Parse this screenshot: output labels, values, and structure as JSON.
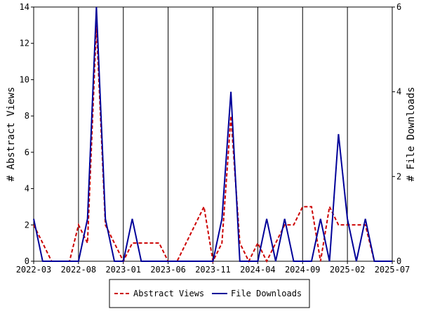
{
  "chart_data": {
    "type": "line",
    "x_tick_labels": [
      "2022-03",
      "2022-08",
      "2023-01",
      "2023-06",
      "2023-11",
      "2024-04",
      "2024-09",
      "2025-02",
      "2025-07"
    ],
    "x": [
      "2022-03",
      "2022-04",
      "2022-05",
      "2022-06",
      "2022-07",
      "2022-08",
      "2022-09",
      "2022-10",
      "2022-11",
      "2022-12",
      "2023-01",
      "2023-02",
      "2023-03",
      "2023-04",
      "2023-05",
      "2023-06",
      "2023-07",
      "2023-08",
      "2023-09",
      "2023-10",
      "2023-11",
      "2023-12",
      "2024-01",
      "2024-02",
      "2024-03",
      "2024-04",
      "2024-05",
      "2024-06",
      "2024-07",
      "2024-08",
      "2024-09",
      "2024-10",
      "2024-11",
      "2024-12",
      "2025-01",
      "2025-02",
      "2025-03",
      "2025-04",
      "2025-05",
      "2025-06",
      "2025-07"
    ],
    "series": [
      {
        "name": "Abstract Views",
        "axis": "left",
        "color": "#cc0000",
        "style": "dashed",
        "values": [
          2,
          1,
          0,
          0,
          0,
          2,
          1,
          13,
          2,
          1,
          0,
          1,
          1,
          1,
          1,
          0,
          0,
          1,
          2,
          3,
          0,
          1,
          8,
          1,
          0,
          1,
          0,
          1,
          2,
          2,
          3,
          3,
          0,
          3,
          2,
          2,
          2,
          2,
          0,
          0,
          0
        ]
      },
      {
        "name": "File Downloads",
        "axis": "right",
        "color": "#000099",
        "style": "solid",
        "values": [
          1,
          0,
          0,
          0,
          0,
          0,
          1,
          6,
          1,
          0,
          0,
          1,
          0,
          0,
          0,
          0,
          0,
          0,
          0,
          0,
          0,
          1,
          4,
          0,
          0,
          0,
          1,
          0,
          1,
          0,
          0,
          0,
          1,
          0,
          3,
          1,
          0,
          1,
          0,
          0,
          0
        ]
      }
    ],
    "ylabel": "# Abstract Views",
    "ylabel_right": "# File Downloads",
    "ylim": [
      0,
      14
    ],
    "ylim_right": [
      0,
      6
    ],
    "y_ticks": [
      0,
      2,
      4,
      6,
      8,
      10,
      12,
      14
    ],
    "y_ticks_right": [
      0,
      2,
      4,
      6
    ],
    "legend_position": "bottom"
  }
}
